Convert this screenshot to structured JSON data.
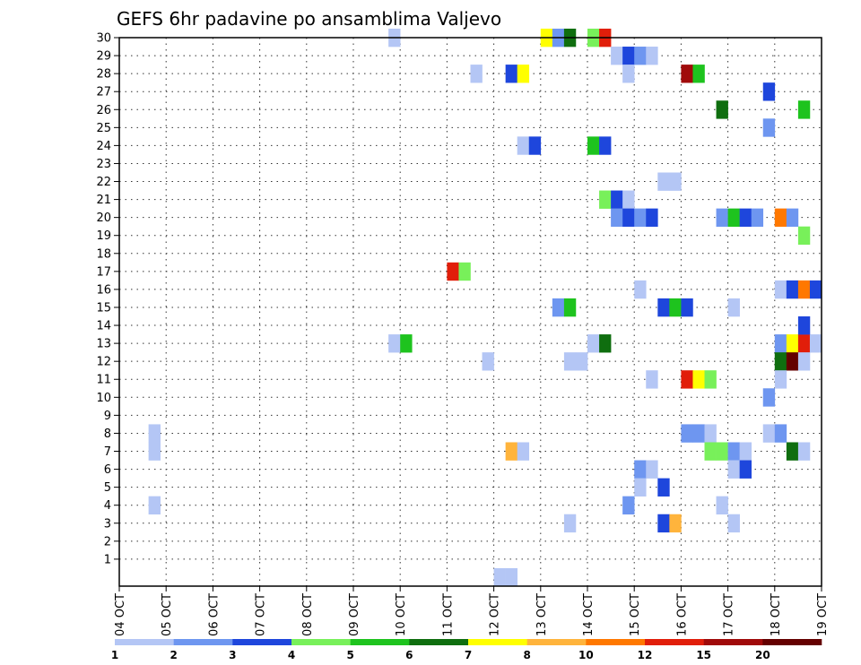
{
  "chart_data": {
    "type": "heatmap",
    "title": "GEFS 6hr padavine po ansamblima Valjevo",
    "xlabel": "",
    "ylabel": "",
    "x_tick_labels": [
      "04 OCT",
      "05 OCT",
      "06 OCT",
      "07 OCT",
      "08 OCT",
      "09 OCT",
      "10 OCT",
      "11 OCT",
      "12 OCT",
      "13 OCT",
      "14 OCT",
      "15 OCT",
      "16 OCT",
      "17 OCT",
      "18 OCT",
      "19 OCT"
    ],
    "x_range_days": [
      4,
      19
    ],
    "y_ticks": [
      1,
      2,
      3,
      4,
      5,
      6,
      7,
      8,
      9,
      10,
      11,
      12,
      13,
      14,
      15,
      16,
      17,
      18,
      19,
      20,
      21,
      22,
      23,
      24,
      25,
      26,
      27,
      28,
      29,
      30
    ],
    "y_range": [
      0,
      30
    ],
    "grid": true,
    "legend_placement": "bottom",
    "colorbar": {
      "colors": [
        "#b4c6f5",
        "#6e96f0",
        "#1e46dc",
        "#78f05a",
        "#1ec31e",
        "#0f6e0f",
        "#ffff00",
        "#ffb43c",
        "#ff7800",
        "#e11e0a",
        "#a00a0a",
        "#640000"
      ],
      "labels": [
        "1",
        "2",
        "3",
        "4",
        "5",
        "6",
        "7",
        "8",
        "10",
        "12",
        "15",
        "20"
      ]
    },
    "cells": [
      {
        "x": 4.75,
        "y": 8,
        "c": 0
      },
      {
        "x": 4.75,
        "y": 7,
        "c": 0
      },
      {
        "x": 4.75,
        "y": 4,
        "c": 0
      },
      {
        "x": 9.875,
        "y": 30,
        "c": 0
      },
      {
        "x": 9.875,
        "y": 13,
        "c": 0
      },
      {
        "x": 10.125,
        "y": 13,
        "c": 4
      },
      {
        "x": 11.125,
        "y": 17,
        "c": 9
      },
      {
        "x": 11.375,
        "y": 17,
        "c": 3
      },
      {
        "x": 11.625,
        "y": 28,
        "c": 0
      },
      {
        "x": 11.875,
        "y": 12,
        "c": 0
      },
      {
        "x": 12.125,
        "y": 0,
        "c": 0
      },
      {
        "x": 12.375,
        "y": 0,
        "c": 0
      },
      {
        "x": 12.375,
        "y": 28,
        "c": 2
      },
      {
        "x": 12.625,
        "y": 28,
        "c": 6
      },
      {
        "x": 12.375,
        "y": 7,
        "c": 7
      },
      {
        "x": 12.625,
        "y": 7,
        "c": 0
      },
      {
        "x": 12.625,
        "y": 24,
        "c": 0
      },
      {
        "x": 12.875,
        "y": 24,
        "c": 2
      },
      {
        "x": 13.125,
        "y": 30,
        "c": 6
      },
      {
        "x": 13.375,
        "y": 30,
        "c": 1
      },
      {
        "x": 13.625,
        "y": 30,
        "c": 5
      },
      {
        "x": 13.375,
        "y": 15,
        "c": 1
      },
      {
        "x": 13.625,
        "y": 15,
        "c": 4
      },
      {
        "x": 13.625,
        "y": 12,
        "c": 0
      },
      {
        "x": 13.875,
        "y": 12,
        "c": 0
      },
      {
        "x": 13.625,
        "y": 3,
        "c": 0
      },
      {
        "x": 14.125,
        "y": 30,
        "c": 3
      },
      {
        "x": 14.375,
        "y": 30,
        "c": 9
      },
      {
        "x": 14.125,
        "y": 24,
        "c": 4
      },
      {
        "x": 14.375,
        "y": 24,
        "c": 2
      },
      {
        "x": 14.125,
        "y": 13,
        "c": 0
      },
      {
        "x": 14.375,
        "y": 13,
        "c": 5
      },
      {
        "x": 14.375,
        "y": 21,
        "c": 3
      },
      {
        "x": 14.625,
        "y": 29,
        "c": 0
      },
      {
        "x": 14.875,
        "y": 29,
        "c": 2
      },
      {
        "x": 15.125,
        "y": 29,
        "c": 1
      },
      {
        "x": 15.375,
        "y": 29,
        "c": 0
      },
      {
        "x": 14.875,
        "y": 28,
        "c": 0
      },
      {
        "x": 14.625,
        "y": 21,
        "c": 2
      },
      {
        "x": 14.875,
        "y": 21,
        "c": 0
      },
      {
        "x": 14.625,
        "y": 20,
        "c": 1
      },
      {
        "x": 14.875,
        "y": 20,
        "c": 2
      },
      {
        "x": 15.125,
        "y": 20,
        "c": 1
      },
      {
        "x": 15.375,
        "y": 20,
        "c": 2
      },
      {
        "x": 14.875,
        "y": 4,
        "c": 1
      },
      {
        "x": 15.125,
        "y": 16,
        "c": 0
      },
      {
        "x": 15.125,
        "y": 6,
        "c": 1
      },
      {
        "x": 15.375,
        "y": 6,
        "c": 0
      },
      {
        "x": 15.125,
        "y": 5,
        "c": 0
      },
      {
        "x": 15.375,
        "y": 11,
        "c": 0
      },
      {
        "x": 15.625,
        "y": 22,
        "c": 0
      },
      {
        "x": 15.875,
        "y": 22,
        "c": 0
      },
      {
        "x": 15.625,
        "y": 15,
        "c": 2
      },
      {
        "x": 15.875,
        "y": 15,
        "c": 4
      },
      {
        "x": 16.125,
        "y": 15,
        "c": 2
      },
      {
        "x": 15.625,
        "y": 5,
        "c": 2
      },
      {
        "x": 15.625,
        "y": 3,
        "c": 2
      },
      {
        "x": 15.875,
        "y": 3,
        "c": 7
      },
      {
        "x": 16.125,
        "y": 28,
        "c": 10
      },
      {
        "x": 16.375,
        "y": 28,
        "c": 4
      },
      {
        "x": 16.125,
        "y": 11,
        "c": 9
      },
      {
        "x": 16.375,
        "y": 11,
        "c": 6
      },
      {
        "x": 16.625,
        "y": 11,
        "c": 3
      },
      {
        "x": 16.125,
        "y": 8,
        "c": 1
      },
      {
        "x": 16.375,
        "y": 8,
        "c": 1
      },
      {
        "x": 16.625,
        "y": 8,
        "c": 0
      },
      {
        "x": 16.625,
        "y": 7,
        "c": 3
      },
      {
        "x": 16.875,
        "y": 7,
        "c": 3
      },
      {
        "x": 17.125,
        "y": 7,
        "c": 1
      },
      {
        "x": 17.375,
        "y": 7,
        "c": 0
      },
      {
        "x": 16.875,
        "y": 26,
        "c": 5
      },
      {
        "x": 16.875,
        "y": 20,
        "c": 1
      },
      {
        "x": 17.125,
        "y": 20,
        "c": 4
      },
      {
        "x": 17.375,
        "y": 20,
        "c": 2
      },
      {
        "x": 17.625,
        "y": 20,
        "c": 1
      },
      {
        "x": 16.875,
        "y": 4,
        "c": 0
      },
      {
        "x": 17.125,
        "y": 15,
        "c": 0
      },
      {
        "x": 17.125,
        "y": 6,
        "c": 0
      },
      {
        "x": 17.375,
        "y": 6,
        "c": 2
      },
      {
        "x": 17.125,
        "y": 3,
        "c": 0
      },
      {
        "x": 17.875,
        "y": 27,
        "c": 2
      },
      {
        "x": 17.875,
        "y": 25,
        "c": 1
      },
      {
        "x": 17.875,
        "y": 10,
        "c": 1
      },
      {
        "x": 17.875,
        "y": 8,
        "c": 0
      },
      {
        "x": 18.125,
        "y": 8,
        "c": 1
      },
      {
        "x": 18.125,
        "y": 20,
        "c": 8
      },
      {
        "x": 18.375,
        "y": 20,
        "c": 1
      },
      {
        "x": 18.125,
        "y": 16,
        "c": 0
      },
      {
        "x": 18.375,
        "y": 16,
        "c": 2
      },
      {
        "x": 18.625,
        "y": 16,
        "c": 8
      },
      {
        "x": 18.875,
        "y": 16,
        "c": 2
      },
      {
        "x": 18.125,
        "y": 13,
        "c": 1
      },
      {
        "x": 18.375,
        "y": 13,
        "c": 6
      },
      {
        "x": 18.625,
        "y": 13,
        "c": 9
      },
      {
        "x": 18.875,
        "y": 13,
        "c": 0
      },
      {
        "x": 18.125,
        "y": 12,
        "c": 5
      },
      {
        "x": 18.375,
        "y": 12,
        "c": 11
      },
      {
        "x": 18.625,
        "y": 12,
        "c": 0
      },
      {
        "x": 18.125,
        "y": 11,
        "c": 0
      },
      {
        "x": 18.375,
        "y": 7,
        "c": 5
      },
      {
        "x": 18.625,
        "y": 7,
        "c": 0
      },
      {
        "x": 18.625,
        "y": 26,
        "c": 4
      },
      {
        "x": 18.625,
        "y": 19,
        "c": 3
      },
      {
        "x": 18.625,
        "y": 14,
        "c": 2
      }
    ]
  }
}
